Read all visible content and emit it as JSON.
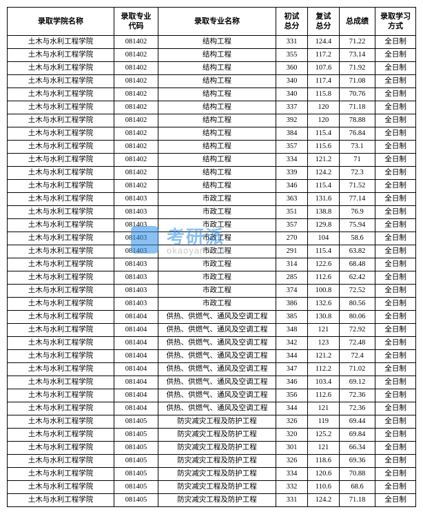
{
  "watermark": {
    "brand": "考研派",
    "url": "okaoyan.com"
  },
  "table": {
    "columns": [
      "录取学院名称",
      "录取专业代码",
      "录取专业名称",
      "初试总分",
      "复试总分",
      "总成绩",
      "录取学习方式"
    ],
    "col_classes": [
      "col-school",
      "col-code",
      "col-major",
      "col-s1",
      "col-s2",
      "col-total",
      "col-mode"
    ],
    "rows": [
      [
        "土木与水利工程学院",
        "081402",
        "结构工程",
        "331",
        "124.4",
        "71.22",
        "全日制"
      ],
      [
        "土木与水利工程学院",
        "081402",
        "结构工程",
        "355",
        "117.2",
        "73.14",
        "全日制"
      ],
      [
        "土木与水利工程学院",
        "081402",
        "结构工程",
        "360",
        "107.6",
        "71.92",
        "全日制"
      ],
      [
        "土木与水利工程学院",
        "081402",
        "结构工程",
        "340",
        "117.4",
        "71.08",
        "全日制"
      ],
      [
        "土木与水利工程学院",
        "081402",
        "结构工程",
        "340",
        "115.8",
        "70.76",
        "全日制"
      ],
      [
        "土木与水利工程学院",
        "081402",
        "结构工程",
        "337",
        "120",
        "71.18",
        "全日制"
      ],
      [
        "土木与水利工程学院",
        "081402",
        "结构工程",
        "392",
        "120",
        "78.88",
        "全日制"
      ],
      [
        "土木与水利工程学院",
        "081402",
        "结构工程",
        "384",
        "115.4",
        "76.84",
        "全日制"
      ],
      [
        "土木与水利工程学院",
        "081402",
        "结构工程",
        "357",
        "115.6",
        "73.1",
        "全日制"
      ],
      [
        "土木与水利工程学院",
        "081402",
        "结构工程",
        "334",
        "121.2",
        "71",
        "全日制"
      ],
      [
        "土木与水利工程学院",
        "081402",
        "结构工程",
        "339",
        "124.2",
        "72.3",
        "全日制"
      ],
      [
        "土木与水利工程学院",
        "081402",
        "结构工程",
        "346",
        "115.4",
        "71.52",
        "全日制"
      ],
      [
        "土木与水利工程学院",
        "081403",
        "市政工程",
        "363",
        "131.6",
        "77.14",
        "全日制"
      ],
      [
        "土木与水利工程学院",
        "081403",
        "市政工程",
        "351",
        "138.8",
        "76.9",
        "全日制"
      ],
      [
        "土木与水利工程学院",
        "081403",
        "市政工程",
        "357",
        "129.8",
        "75.94",
        "全日制"
      ],
      [
        "土木与水利工程学院",
        "081403",
        "市政工程",
        "270",
        "104",
        "58.6",
        "全日制"
      ],
      [
        "土木与水利工程学院",
        "081403",
        "市政工程",
        "291",
        "115.4",
        "63.82",
        "全日制"
      ],
      [
        "土木与水利工程学院",
        "081403",
        "市政工程",
        "314",
        "122.6",
        "68.48",
        "全日制"
      ],
      [
        "土木与水利工程学院",
        "081403",
        "市政工程",
        "285",
        "112.6",
        "62.42",
        "全日制"
      ],
      [
        "土木与水利工程学院",
        "081403",
        "市政工程",
        "374",
        "100.8",
        "72.52",
        "全日制"
      ],
      [
        "土木与水利工程学院",
        "081403",
        "市政工程",
        "386",
        "132.6",
        "80.56",
        "全日制"
      ],
      [
        "土木与水利工程学院",
        "081404",
        "供热、供燃气、通风及空调工程",
        "385",
        "130.8",
        "80.06",
        "全日制"
      ],
      [
        "土木与水利工程学院",
        "081404",
        "供热、供燃气、通风及空调工程",
        "348",
        "121",
        "72.92",
        "全日制"
      ],
      [
        "土木与水利工程学院",
        "081404",
        "供热、供燃气、通风及空调工程",
        "342",
        "123",
        "72.48",
        "全日制"
      ],
      [
        "土木与水利工程学院",
        "081404",
        "供热、供燃气、通风及空调工程",
        "344",
        "121.2",
        "72.4",
        "全日制"
      ],
      [
        "土木与水利工程学院",
        "081404",
        "供热、供燃气、通风及空调工程",
        "347",
        "112.2",
        "71.02",
        "全日制"
      ],
      [
        "土木与水利工程学院",
        "081404",
        "供热、供燃气、通风及空调工程",
        "346",
        "103.4",
        "69.12",
        "全日制"
      ],
      [
        "土木与水利工程学院",
        "081404",
        "供热、供燃气、通风及空调工程",
        "356",
        "112.6",
        "72.36",
        "全日制"
      ],
      [
        "土木与水利工程学院",
        "081404",
        "供热、供燃气、通风及空调工程",
        "344",
        "121",
        "72.36",
        "全日制"
      ],
      [
        "土木与水利工程学院",
        "081405",
        "防灾减灾工程及防护工程",
        "326",
        "119",
        "69.44",
        "全日制"
      ],
      [
        "土木与水利工程学院",
        "081405",
        "防灾减灾工程及防护工程",
        "320",
        "125.2",
        "69.84",
        "全日制"
      ],
      [
        "土木与水利工程学院",
        "081405",
        "防灾减灾工程及防护工程",
        "301",
        "121",
        "66.34",
        "全日制"
      ],
      [
        "土木与水利工程学院",
        "081405",
        "防灾减灾工程及防护工程",
        "326",
        "118.6",
        "69.36",
        "全日制"
      ],
      [
        "土木与水利工程学院",
        "081405",
        "防灾减灾工程及防护工程",
        "334",
        "120.6",
        "70.88",
        "全日制"
      ],
      [
        "土木与水利工程学院",
        "081405",
        "防灾减灾工程及防护工程",
        "332",
        "110.6",
        "68.6",
        "全日制"
      ],
      [
        "土木与水利工程学院",
        "081405",
        "防灾减灾工程及防护工程",
        "331",
        "124.2",
        "71.18",
        "全日制"
      ]
    ]
  }
}
